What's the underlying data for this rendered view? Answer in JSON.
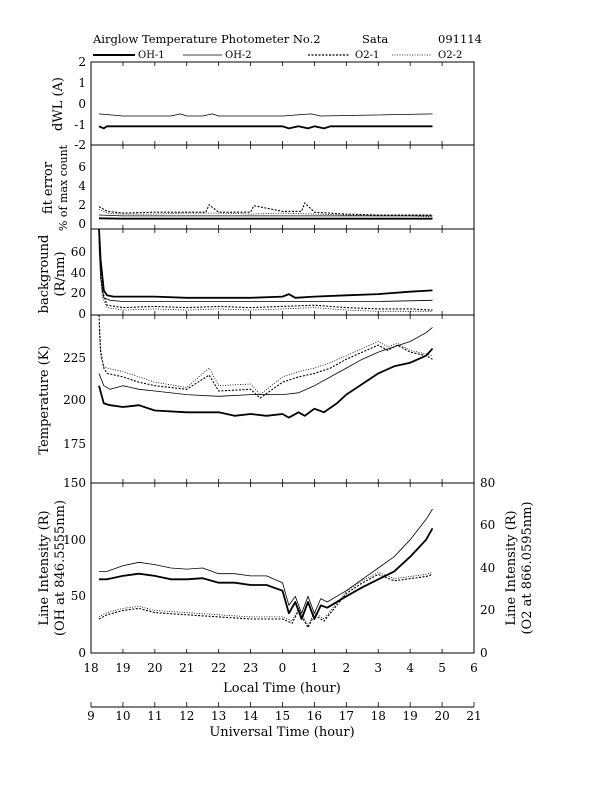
{
  "header": {
    "title": "Airglow Temperature Photometer No.2",
    "site": "Sata",
    "date": "091114"
  },
  "legend": [
    {
      "label": "OH-1",
      "style": "solid-bold"
    },
    {
      "label": "OH-2",
      "style": "solid-thin"
    },
    {
      "label": "O2-1",
      "style": "dash"
    },
    {
      "label": "O2-2",
      "style": "dot"
    }
  ],
  "x_axes": {
    "local": {
      "label": "Local Time (hour)",
      "ticks": [
        "18",
        "19",
        "20",
        "21",
        "22",
        "23",
        "0",
        "1",
        "2",
        "3",
        "4",
        "5",
        "6"
      ]
    },
    "universal": {
      "label": "Universal Time (hour)",
      "ticks": [
        "9",
        "10",
        "11",
        "12",
        "13",
        "14",
        "15",
        "16",
        "17",
        "18",
        "19",
        "20",
        "21"
      ]
    }
  },
  "panels": {
    "dwl": {
      "ylabel": "dWL (A)",
      "ticks": [
        "2",
        "1",
        "0",
        "-1",
        "-2"
      ]
    },
    "fit": {
      "ylabel_line1": "fit error",
      "ylabel_line2": "% of max count",
      "ticks": [
        "6",
        "4",
        "2",
        "0"
      ]
    },
    "bg": {
      "ylabel_line1": "background",
      "ylabel_line2": "(R/nm)",
      "ticks": [
        "60",
        "40",
        "20",
        "0"
      ]
    },
    "temp": {
      "ylabel": "Temperature (K)",
      "ticks": [
        "225",
        "200",
        "175"
      ]
    },
    "intensity": {
      "ylabel_left_line1": "Line Intensity (R)",
      "ylabel_left_line2": "(OH at 846.5555nm)",
      "ylabel_right_line1": "Line Intensity (R)",
      "ylabel_right_line2": "(O2 at 866.0595nm)",
      "ticks_left": [
        "150",
        "100",
        "50",
        "0"
      ],
      "ticks_right": [
        "80",
        "60",
        "40",
        "20",
        "0"
      ]
    }
  },
  "chart_data": [
    {
      "type": "line",
      "panel": "dWL",
      "ylim": [
        -2,
        2
      ],
      "x_unit": "universal time (hour)",
      "series": [
        {
          "name": "OH-1",
          "x": [
            9.25,
            9.4,
            9.5,
            13,
            15,
            15.2,
            15.5,
            15.8,
            16,
            16.3,
            16.5,
            19.7
          ],
          "y": [
            -1.1,
            -1.2,
            -1.1,
            -1.1,
            -1.1,
            -1.2,
            -1.1,
            -1.2,
            -1.1,
            -1.2,
            -1.1,
            -1.1
          ]
        },
        {
          "name": "OH-2",
          "x": [
            9.25,
            10,
            11.5,
            11.8,
            12,
            12.5,
            12.8,
            13,
            15,
            15.9,
            16.2,
            19.7
          ],
          "y": [
            -0.5,
            -0.6,
            -0.6,
            -0.5,
            -0.6,
            -0.6,
            -0.5,
            -0.6,
            -0.6,
            -0.5,
            -0.6,
            -0.5
          ]
        }
      ]
    },
    {
      "type": "line",
      "panel": "fit error",
      "ylim": [
        -1,
        8
      ],
      "x_unit": "universal time (hour)",
      "series": [
        {
          "name": "OH-1",
          "x": [
            9.25,
            10,
            12,
            14,
            16,
            18,
            19.7
          ],
          "y": [
            0.15,
            0.1,
            0.1,
            0.1,
            0.1,
            0.1,
            0.1
          ]
        },
        {
          "name": "OH-2",
          "x": [
            9.25,
            10,
            12,
            14,
            16,
            18,
            19.7
          ],
          "y": [
            0.5,
            0.4,
            0.4,
            0.4,
            0.4,
            0.4,
            0.4
          ]
        },
        {
          "name": "O2-1",
          "x": [
            9.25,
            9.5,
            10,
            11,
            12.6,
            12.7,
            13,
            14,
            14.1,
            15,
            15.6,
            15.7,
            16,
            17,
            18,
            19,
            19.7
          ],
          "y": [
            1.4,
            0.9,
            0.7,
            0.8,
            0.8,
            1.6,
            0.8,
            0.8,
            1.5,
            0.9,
            0.9,
            1.8,
            0.8,
            0.6,
            0.5,
            0.5,
            0.5
          ]
        },
        {
          "name": "O2-2",
          "x": [
            9.25,
            9.5,
            10,
            11,
            12,
            13,
            14,
            15,
            16,
            17,
            18,
            19,
            19.7
          ],
          "y": [
            1.1,
            0.7,
            0.6,
            0.6,
            0.7,
            0.7,
            0.6,
            0.7,
            0.6,
            0.5,
            0.4,
            0.4,
            0.3
          ]
        }
      ]
    },
    {
      "type": "line",
      "panel": "background",
      "ylim": [
        0,
        70
      ],
      "x_unit": "universal time (hour)",
      "series": [
        {
          "name": "OH-1",
          "x": [
            9.25,
            9.3,
            9.4,
            9.5,
            9.7,
            10,
            11,
            12,
            13,
            14,
            15,
            15.2,
            15.4,
            16,
            17,
            18,
            19,
            19.7
          ],
          "y": [
            70,
            45,
            20,
            16,
            15,
            15,
            15,
            14,
            14,
            14,
            15,
            17,
            14,
            15,
            16,
            17,
            19,
            20
          ]
        },
        {
          "name": "OH-2",
          "x": [
            9.25,
            9.3,
            9.4,
            9.6,
            10,
            12,
            14,
            16,
            18,
            19.7
          ],
          "y": [
            60,
            30,
            14,
            12,
            11,
            11,
            11,
            11,
            11,
            12
          ]
        },
        {
          "name": "O2-1",
          "x": [
            9.25,
            9.35,
            9.5,
            10,
            11,
            12,
            13,
            14,
            15,
            16,
            17,
            18,
            19,
            19.7
          ],
          "y": [
            65,
            20,
            8,
            6,
            7,
            6,
            7,
            6,
            7,
            8,
            6,
            5,
            5,
            4
          ]
        },
        {
          "name": "O2-2",
          "x": [
            9.25,
            9.35,
            9.5,
            10,
            11,
            12,
            13,
            14,
            15,
            16,
            17,
            18,
            19,
            19.7
          ],
          "y": [
            55,
            15,
            6,
            4,
            5,
            4,
            5,
            4,
            5,
            6,
            4,
            3,
            3,
            3
          ]
        }
      ]
    },
    {
      "type": "line",
      "panel": "Temperature",
      "ylim": [
        150,
        245
      ],
      "ylabel": "Temperature (K)",
      "x_unit": "universal time (hour)",
      "series": [
        {
          "name": "OH-1",
          "x": [
            9.25,
            9.4,
            9.6,
            10,
            10.5,
            11,
            12,
            13,
            13.5,
            14,
            14.5,
            15,
            15.2,
            15.5,
            15.7,
            16,
            16.3,
            16.7,
            17,
            17.5,
            18,
            18.5,
            19,
            19.5,
            19.7
          ],
          "y": [
            205,
            195,
            194,
            193,
            194,
            191,
            190,
            190,
            188,
            189,
            188,
            189,
            187,
            190,
            188,
            192,
            190,
            195,
            200,
            206,
            212,
            216,
            218,
            222,
            226
          ]
        },
        {
          "name": "OH-2",
          "x": [
            9.25,
            9.4,
            9.6,
            10,
            10.5,
            11,
            12,
            13,
            14,
            15,
            15.5,
            16,
            17,
            17.5,
            18,
            18.5,
            19,
            19.5,
            19.7
          ],
          "y": [
            212,
            205,
            203,
            205,
            203,
            202,
            200,
            199,
            200,
            200,
            201,
            205,
            215,
            220,
            224,
            227,
            230,
            235,
            238
          ]
        },
        {
          "name": "O2-1",
          "x": [
            9.25,
            9.3,
            9.4,
            9.5,
            10,
            10.5,
            11,
            12,
            12.7,
            13,
            14,
            14.3,
            15,
            15.5,
            16,
            16.5,
            17,
            17.5,
            18,
            18.3,
            18.6,
            19,
            19.5,
            19.7
          ],
          "y": [
            245,
            225,
            215,
            212,
            210,
            207,
            205,
            203,
            211,
            202,
            203,
            198,
            207,
            210,
            212,
            215,
            220,
            224,
            228,
            225,
            228,
            224,
            222,
            220
          ]
        },
        {
          "name": "O2-2",
          "x": [
            9.25,
            9.3,
            9.4,
            9.5,
            10,
            10.5,
            11,
            12,
            12.7,
            13,
            14,
            14.3,
            15,
            15.5,
            16,
            16.5,
            17,
            17.5,
            18,
            18.3,
            18.6,
            19,
            19.5,
            19.7
          ],
          "y": [
            240,
            222,
            216,
            215,
            213,
            210,
            207,
            204,
            215,
            205,
            206,
            200,
            210,
            213,
            215,
            218,
            222,
            226,
            230,
            227,
            229,
            225,
            223,
            222
          ]
        }
      ]
    },
    {
      "type": "line",
      "panel": "Line Intensity",
      "ylim_left": [
        0,
        150
      ],
      "ylim_right": [
        0,
        80
      ],
      "x_unit": "universal time (hour)",
      "series": [
        {
          "name": "OH-1",
          "axis": "left",
          "x": [
            9.25,
            9.5,
            10,
            10.5,
            11,
            11.5,
            12,
            12.5,
            13,
            13.5,
            14,
            14.5,
            15,
            15.2,
            15.4,
            15.6,
            15.8,
            16,
            16.2,
            16.4,
            17,
            17.5,
            18,
            18.5,
            19,
            19.5,
            19.7
          ],
          "y": [
            65,
            65,
            68,
            70,
            68,
            65,
            65,
            66,
            62,
            62,
            60,
            60,
            55,
            35,
            45,
            30,
            45,
            30,
            42,
            40,
            50,
            58,
            65,
            72,
            85,
            100,
            110
          ]
        },
        {
          "name": "OH-2",
          "axis": "left",
          "x": [
            9.25,
            9.5,
            10,
            10.5,
            11,
            11.5,
            12,
            12.5,
            13,
            13.5,
            14,
            14.5,
            15,
            15.2,
            15.4,
            15.6,
            15.8,
            16,
            16.2,
            16.4,
            17,
            17.5,
            18,
            18.5,
            19,
            19.5,
            19.7
          ],
          "y": [
            72,
            72,
            77,
            80,
            78,
            75,
            74,
            75,
            70,
            70,
            68,
            68,
            62,
            42,
            50,
            35,
            50,
            35,
            48,
            45,
            55,
            65,
            75,
            85,
            100,
            118,
            127
          ]
        },
        {
          "name": "O2-1",
          "axis": "right",
          "x": [
            9.25,
            9.5,
            10,
            10.5,
            11,
            12,
            13,
            14,
            15,
            15.3,
            15.5,
            15.8,
            16,
            16.3,
            17,
            17.5,
            18,
            18.5,
            19,
            19.5,
            19.7
          ],
          "y": [
            16,
            18,
            20,
            21,
            19,
            18,
            17,
            16,
            16,
            14,
            20,
            12,
            18,
            15,
            28,
            33,
            37,
            34,
            35,
            36,
            37
          ]
        },
        {
          "name": "O2-2",
          "axis": "right",
          "x": [
            9.25,
            9.5,
            10,
            10.5,
            11,
            12,
            13,
            14,
            15,
            15.3,
            15.5,
            15.8,
            16,
            16.3,
            17,
            17.5,
            18,
            18.5,
            19,
            19.5,
            19.7
          ],
          "y": [
            17,
            19,
            21,
            22,
            20,
            19,
            18,
            17,
            17,
            15,
            21,
            13,
            19,
            16,
            29,
            34,
            38,
            35,
            36,
            37,
            38
          ]
        }
      ]
    }
  ]
}
